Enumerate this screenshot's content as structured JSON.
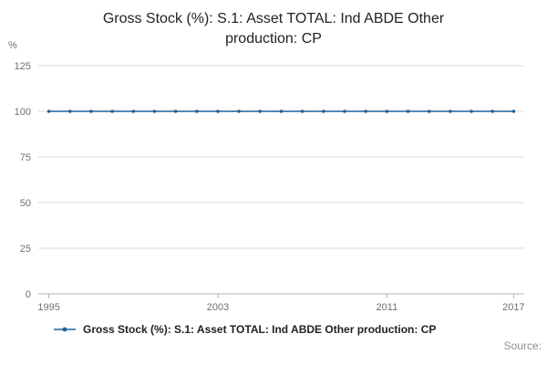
{
  "title": "Gross Stock (%): S.1: Asset TOTAL: Ind ABDE Other production: CP",
  "chart_data": {
    "type": "line",
    "title": "Gross Stock (%): S.1: Asset TOTAL: Ind ABDE Other production: CP",
    "unit_label": "%",
    "x": [
      1995,
      1996,
      1997,
      1998,
      1999,
      2000,
      2001,
      2002,
      2003,
      2004,
      2005,
      2006,
      2007,
      2008,
      2009,
      2010,
      2011,
      2012,
      2013,
      2014,
      2015,
      2016,
      2017
    ],
    "series": [
      {
        "name": "Gross Stock (%): S.1: Asset TOTAL: Ind ABDE Other production: CP",
        "values": [
          100,
          100,
          100,
          100,
          100,
          100,
          100,
          100,
          100,
          100,
          100,
          100,
          100,
          100,
          100,
          100,
          100,
          100,
          100,
          100,
          100,
          100,
          100
        ]
      }
    ],
    "ylim": [
      0,
      125
    ],
    "yticks": [
      0,
      25,
      50,
      75,
      100,
      125
    ],
    "xticks": [
      1995,
      2003,
      2011,
      2017
    ],
    "grid": true,
    "legend_position": "bottom",
    "line_color": "#206095",
    "grid_color": "#d9d9d9",
    "axis_color": "#b3b3b3"
  },
  "legend": {
    "label": "Gross Stock (%): S.1: Asset TOTAL: Ind ABDE Other production: CP"
  },
  "source": {
    "label": "Source:"
  }
}
